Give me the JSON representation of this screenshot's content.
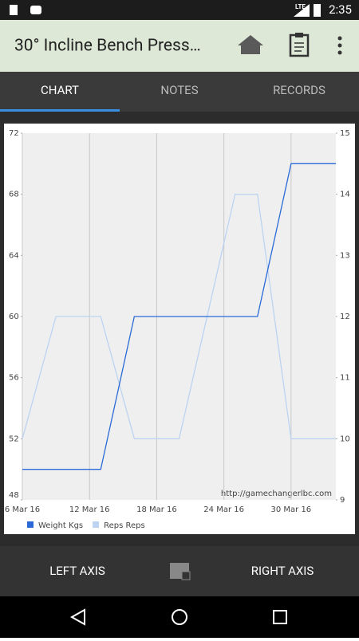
{
  "status_bar": {
    "network": "LTE",
    "time": "2:35"
  },
  "app_bar": {
    "title": "30° Incline Bench Press…"
  },
  "tabs": [
    "CHART",
    "NOTES",
    "RECORDS"
  ],
  "chart_data": {
    "type": "line",
    "x": [
      "2016-03-06",
      "2016-03-09",
      "2016-03-11",
      "2016-03-13",
      "2016-03-16",
      "2016-03-20",
      "2016-03-25",
      "2016-03-27",
      "2016-03-30",
      "2016-04-03"
    ],
    "series": [
      {
        "name": "Weight Kgs",
        "color": "#2a6ad8",
        "values": [
          50,
          50,
          50,
          50,
          60,
          60,
          60,
          60,
          70,
          70
        ]
      },
      {
        "name": "Reps Reps",
        "color": "#bcd3f2",
        "axis": "y2",
        "values": [
          10,
          12,
          12,
          12,
          10,
          10,
          14,
          14,
          10,
          10
        ]
      }
    ],
    "xlim": [
      "2016-03-06",
      "2016-04-03"
    ],
    "xticks": [
      {
        "value": "2016-03-06",
        "label": "6 Mar 16"
      },
      {
        "value": "2016-03-12",
        "label": "12 Mar 16"
      },
      {
        "value": "2016-03-18",
        "label": "18 Mar 16"
      },
      {
        "value": "2016-03-24",
        "label": "24 Mar 16"
      },
      {
        "value": "2016-03-30",
        "label": "30 Mar 16"
      }
    ],
    "ylim": [
      48,
      72
    ],
    "yticks": [
      48,
      52,
      56,
      60,
      64,
      68,
      72
    ],
    "y2lim": [
      9,
      15
    ],
    "y2ticks": [
      9,
      10,
      11,
      12,
      13,
      14,
      15
    ],
    "grid": "x",
    "legend": "bottom-left",
    "annotation": "http://gamechangerlbc.com"
  },
  "bottom_bar": {
    "left": "LEFT AXIS",
    "right": "RIGHT AXIS"
  }
}
